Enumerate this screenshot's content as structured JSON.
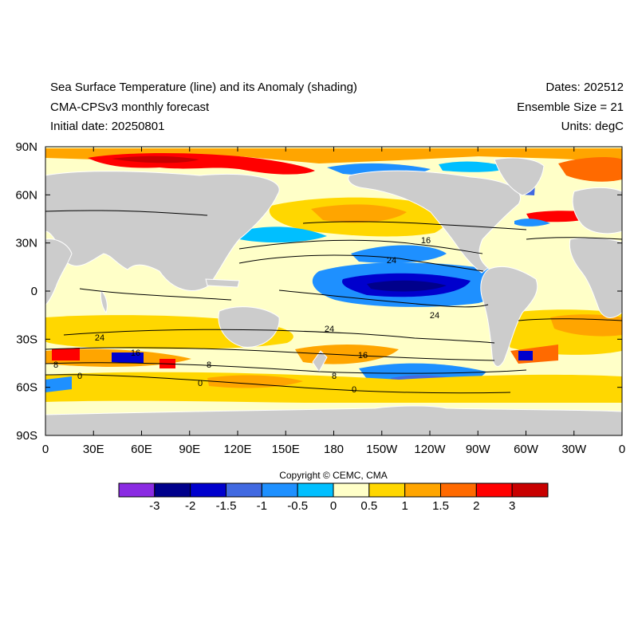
{
  "header": {
    "title": "Sea Surface Temperature (line) and its Anomaly (shading)",
    "model": "CMA-CPSv3 monthly forecast",
    "initial_date": "Initial date: 20250801",
    "dates": "Dates: 202512",
    "ensemble": "Ensemble Size = 21",
    "units": "Units: degC"
  },
  "axes": {
    "lat_labels": [
      "90N",
      "60N",
      "30N",
      "0",
      "30S",
      "60S",
      "90S"
    ],
    "lon_labels": [
      "0",
      "30E",
      "60E",
      "90E",
      "120E",
      "150E",
      "180",
      "150W",
      "120W",
      "90W",
      "60W",
      "30W",
      "0"
    ]
  },
  "contour_labels": [
    "16",
    "24",
    "24",
    "24",
    "16",
    "8",
    "0",
    "8",
    "0",
    "8",
    "0",
    "16",
    "24"
  ],
  "copyright": "Copyright © CEMC, CMA",
  "colorbar": {
    "colors": [
      "#8a2be2",
      "#00008b",
      "#0000cd",
      "#4169e1",
      "#1e90ff",
      "#00bfff",
      "#ffffc8",
      "#ffd700",
      "#ffa500",
      "#ff6a00",
      "#ff0000",
      "#c80000"
    ],
    "labels": [
      "-3",
      "-2",
      "-1.5",
      "-1",
      "-0.5",
      "0",
      "0.5",
      "1",
      "1.5",
      "2",
      "3"
    ]
  },
  "colors": {
    "land": "#cccccc",
    "neutral_ocean": "#ffffc8",
    "contour": "#000000"
  }
}
